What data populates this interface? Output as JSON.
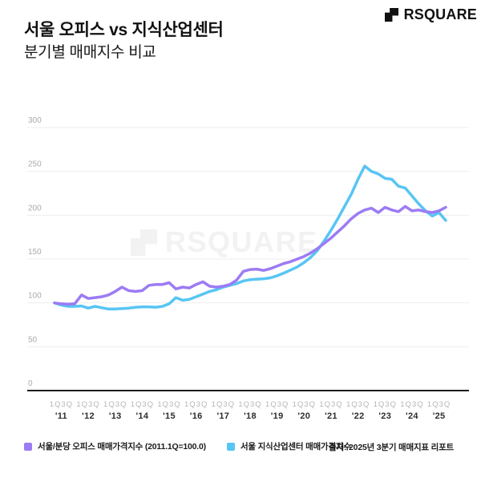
{
  "header": {
    "title": "서울 오피스 vs 지식산업센터",
    "subtitle": "분기별 매매지수 비교",
    "logo_text": "RSQUARE"
  },
  "chart_data": {
    "type": "line",
    "title": "서울 오피스 vs 지식산업센터 분기별 매매지수 비교",
    "ylim": [
      0,
      300
    ],
    "y_ticks": [
      0,
      50,
      100,
      150,
      200,
      250,
      300
    ],
    "grid": true,
    "legend_position": "bottom",
    "watermark": "RSQUARE",
    "quarter_tick_label": "1Q3Q",
    "x_years": [
      "'11",
      "'12",
      "'13",
      "'14",
      "'15",
      "'16",
      "'17",
      "'18",
      "'19",
      "'20",
      "'21",
      "'22",
      "'23",
      "'24",
      "'25"
    ],
    "x_quarters_note": "quarterly points 2011Q1–2025Q3",
    "series": [
      {
        "name": "서울/분당 오피스 매매가격지수 (2011.1Q=100.0)",
        "color": "#9c7bf4",
        "values": [
          100,
          99,
          98.5,
          99,
          109,
          105,
          106,
          107,
          109,
          113,
          118,
          114,
          113,
          114,
          120,
          121,
          121,
          123,
          116,
          118,
          117,
          121,
          124,
          119,
          118,
          119,
          121,
          126,
          136,
          138,
          138.5,
          137,
          139,
          142,
          145,
          147,
          150,
          153,
          157,
          162,
          168,
          174,
          181,
          188,
          196,
          202,
          206,
          208,
          203,
          209,
          206,
          204,
          210,
          205,
          206,
          204,
          203,
          205,
          209
        ]
      },
      {
        "name": "서울 지식산업센터 매매가격지수",
        "color": "#58c5f4",
        "values": [
          100,
          97.5,
          96,
          96,
          96.5,
          94,
          96,
          94.5,
          93,
          93,
          93.5,
          94,
          95,
          95.5,
          95.5,
          95,
          96,
          99,
          106,
          103,
          104,
          107,
          110,
          113,
          115,
          118,
          120,
          122,
          125,
          126.5,
          127,
          127.5,
          128.5,
          131,
          134,
          137.5,
          141,
          146,
          152,
          160,
          171,
          183,
          196,
          210,
          224,
          241,
          256,
          250,
          247,
          242,
          241,
          233,
          231,
          222,
          213,
          205,
          199,
          203,
          194
        ]
      }
    ]
  },
  "footer": {
    "source": "출처: 2025년 3분기 매매지표 리포트"
  }
}
